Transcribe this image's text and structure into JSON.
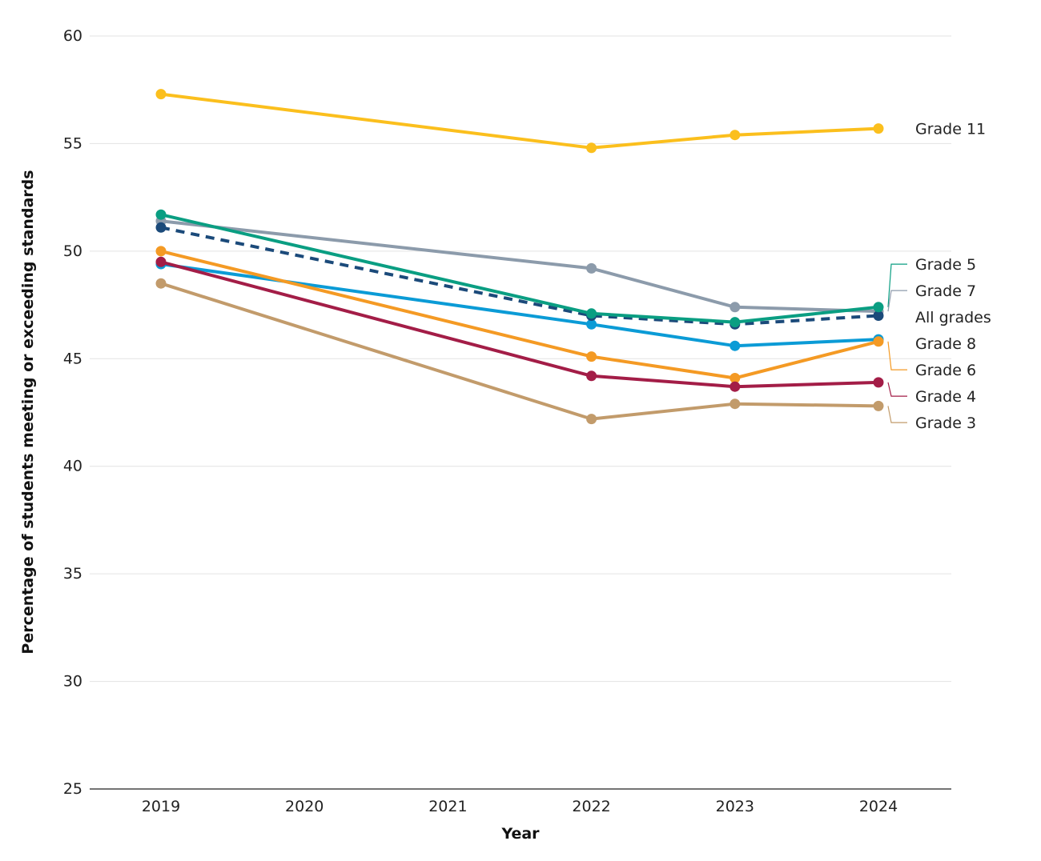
{
  "chart_data": {
    "type": "line",
    "xlabel": "Year",
    "ylabel": "Percentage of students meeting or exceeding standards",
    "ylim": [
      25,
      60
    ],
    "yticks": [
      25,
      30,
      35,
      40,
      45,
      50,
      55,
      60
    ],
    "xlim": [
      2019,
      2024
    ],
    "xticks": [
      2019,
      2020,
      2021,
      2022,
      2023,
      2024
    ],
    "grid": "horizontal",
    "legend": "direct labels at right end of lines",
    "series": [
      {
        "name": "Grade 11",
        "color": "#FBBF1D",
        "dashed": false,
        "x": [
          2019,
          2022,
          2023,
          2024
        ],
        "values": [
          57.3,
          54.8,
          55.4,
          55.7
        ]
      },
      {
        "name": "Grade 7",
        "color": "#8C9BAB",
        "dashed": false,
        "x": [
          2019,
          2022,
          2023,
          2024
        ],
        "values": [
          51.4,
          49.2,
          47.4,
          47.2
        ]
      },
      {
        "name": "Grade 8",
        "color": "#0B9BD6",
        "dashed": false,
        "x": [
          2019,
          2022,
          2023,
          2024
        ],
        "values": [
          49.4,
          46.6,
          45.6,
          45.9
        ]
      },
      {
        "name": "Grade 6",
        "color": "#F49A24",
        "dashed": false,
        "x": [
          2019,
          2022,
          2023,
          2024
        ],
        "values": [
          50.0,
          45.1,
          44.1,
          45.8
        ]
      },
      {
        "name": "Grade 4",
        "color": "#A31D47",
        "dashed": false,
        "x": [
          2019,
          2022,
          2023,
          2024
        ],
        "values": [
          49.5,
          44.2,
          43.7,
          43.9
        ]
      },
      {
        "name": "Grade 3",
        "color": "#C29B6B",
        "dashed": false,
        "x": [
          2019,
          2022,
          2023,
          2024
        ],
        "values": [
          48.5,
          42.2,
          42.9,
          42.8
        ]
      },
      {
        "name": "All grades",
        "color": "#1B4A7A",
        "dashed": true,
        "x": [
          2019,
          2022,
          2023,
          2024
        ],
        "values": [
          51.1,
          47.0,
          46.6,
          47.0
        ]
      },
      {
        "name": "Grade 5",
        "color": "#0A9E82",
        "dashed": false,
        "x": [
          2019,
          2022,
          2023,
          2024
        ],
        "values": [
          51.7,
          47.1,
          46.7,
          47.4
        ]
      }
    ]
  }
}
